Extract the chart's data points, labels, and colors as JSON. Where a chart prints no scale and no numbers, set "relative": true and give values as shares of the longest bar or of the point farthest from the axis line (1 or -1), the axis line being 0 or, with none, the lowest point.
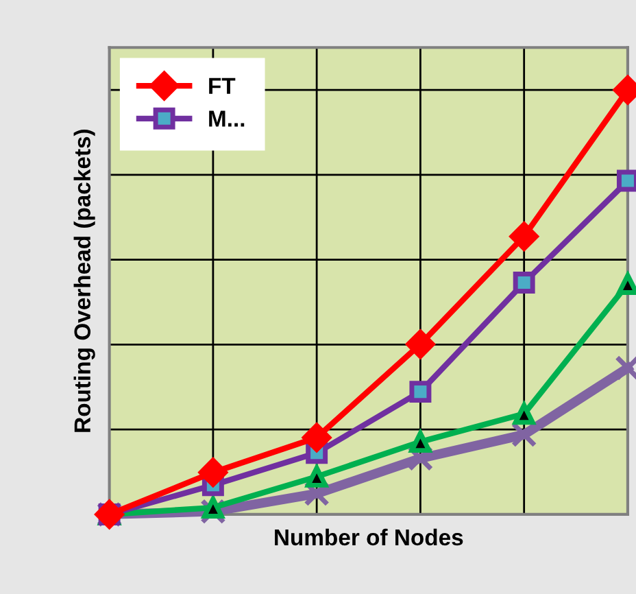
{
  "chart_data": {
    "type": "line",
    "relative": true,
    "xlabel": "Number of Nodes",
    "ylabel": "Routing Overhead (packets)",
    "categories": [
      null,
      null,
      null,
      null,
      null,
      null
    ],
    "grid": true,
    "legend": "top left",
    "series": [
      {
        "name": "FT",
        "color": "#ff0000",
        "marker": "diamond",
        "values": [
          0,
          0.099,
          0.181,
          0.401,
          0.655,
          1
        ]
      },
      {
        "name": "M...",
        "color": "#7030a0",
        "marker": "square",
        "values": [
          0,
          0.069,
          0.145,
          0.289,
          0.546,
          0.786
        ]
      },
      {
        "color": "#00b050",
        "marker": "triangle",
        "values": [
          0,
          0.016,
          0.089,
          0.171,
          0.237,
          0.543
        ]
      },
      {
        "color": "#8064a2",
        "marker": "cross",
        "values": [
          0,
          0.007,
          0.049,
          0.132,
          0.188,
          0.345
        ]
      }
    ]
  }
}
